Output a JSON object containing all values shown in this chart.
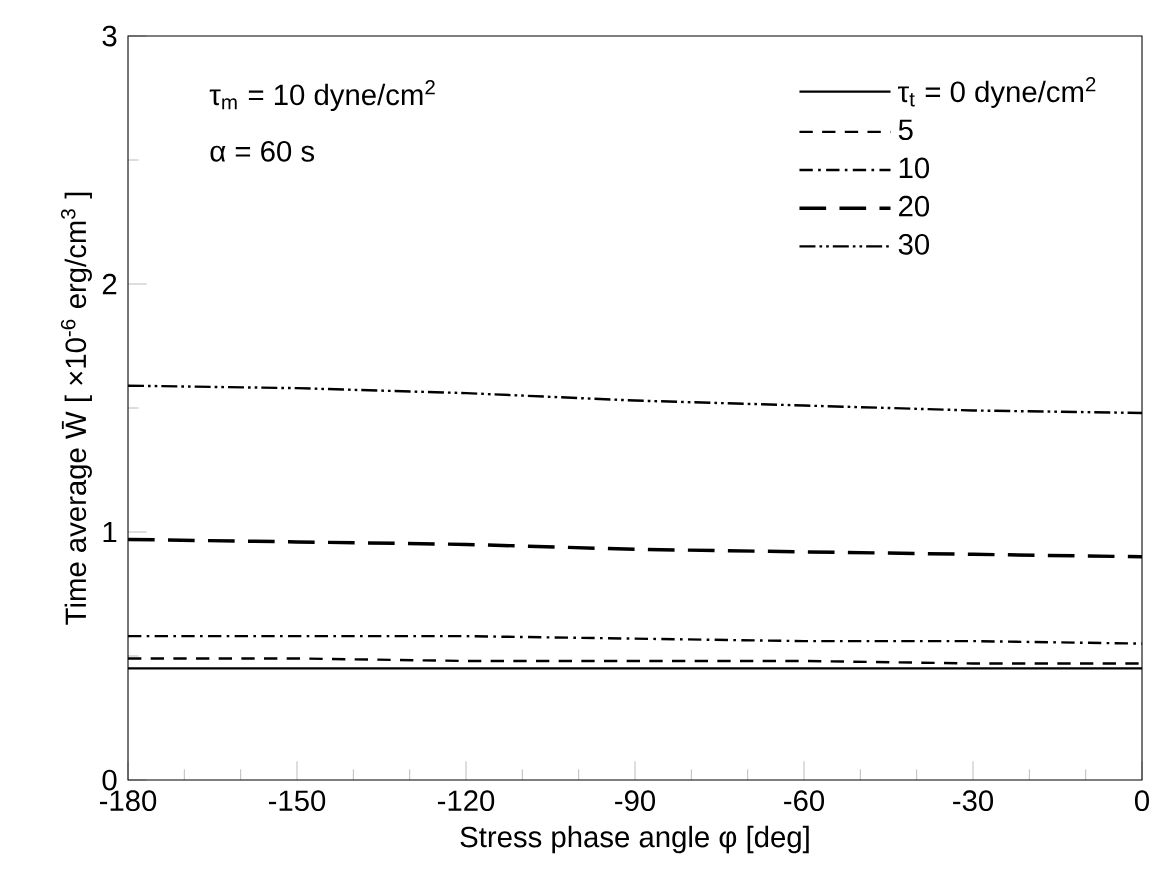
{
  "chart_data": {
    "type": "line",
    "xlabel": "Stress phase angle φ  [deg]",
    "ylabel": "Time average W̄  [ ×10$^{-6}$ erg/cm$^{3}$ ]",
    "x": [
      -180,
      -150,
      -120,
      -90,
      -60,
      -30,
      0
    ],
    "series": [
      {
        "name": "τ$_{t}$ = 0 dyne/cm$^{2}$",
        "color": "#000000",
        "line_style": "solid",
        "values": [
          0.45,
          0.45,
          0.45,
          0.45,
          0.45,
          0.45,
          0.45
        ]
      },
      {
        "name": "5",
        "color": "#000000",
        "line_style": "dashed",
        "values": [
          0.49,
          0.49,
          0.48,
          0.48,
          0.48,
          0.47,
          0.47
        ]
      },
      {
        "name": "10",
        "color": "#000000",
        "line_style": "dashdot",
        "values": [
          0.58,
          0.58,
          0.58,
          0.57,
          0.56,
          0.56,
          0.55
        ]
      },
      {
        "name": "20",
        "color": "#000000",
        "line_style": "longdash",
        "values": [
          0.97,
          0.96,
          0.95,
          0.93,
          0.92,
          0.91,
          0.9
        ]
      },
      {
        "name": "30",
        "color": "#000000",
        "line_style": "dashdotdot",
        "values": [
          1.59,
          1.58,
          1.56,
          1.53,
          1.51,
          1.49,
          1.48
        ]
      }
    ],
    "annotations": [
      "τ$_{m}$ = 10 dyne/cm$^{2}$",
      "α = 60 s"
    ],
    "xlim": [
      -180,
      0
    ],
    "xticks": [
      -180,
      -150,
      -120,
      -90,
      -60,
      -30,
      0
    ],
    "ylim": [
      0,
      3
    ],
    "yticks": [
      0,
      1,
      2,
      3
    ],
    "grid": false,
    "legend": "top right",
    "marker": "none"
  }
}
